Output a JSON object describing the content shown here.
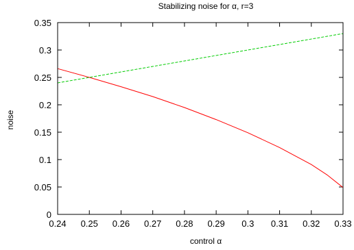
{
  "chart_data": {
    "type": "line",
    "title": "Stabilizing noise for α, r=3",
    "xlabel": "control α",
    "ylabel": "noise",
    "xlim": [
      0.24,
      0.33
    ],
    "ylim": [
      0,
      0.35
    ],
    "xticks": [
      0.24,
      0.25,
      0.26,
      0.27,
      0.28,
      0.29,
      0.3,
      0.31,
      0.32,
      0.33
    ],
    "xtick_labels": [
      "0.24",
      "0.25",
      "0.26",
      "0.27",
      "0.28",
      "0.29",
      "0.3",
      "0.31",
      "0.32",
      "0.33"
    ],
    "yticks": [
      0,
      0.05,
      0.1,
      0.15,
      0.2,
      0.25,
      0.3,
      0.35
    ],
    "ytick_labels": [
      "0",
      "0.05",
      "0.1",
      "0.15",
      "0.2",
      "0.25",
      "0.3",
      "0.35"
    ],
    "grid": false,
    "legend": "none",
    "series": [
      {
        "color": "#ff0000",
        "dash": "solid",
        "x": [
          0.24,
          0.25,
          0.26,
          0.27,
          0.28,
          0.29,
          0.3,
          0.31,
          0.32,
          0.325,
          0.33
        ],
        "y": [
          0.266,
          0.25,
          0.233,
          0.215,
          0.195,
          0.173,
          0.149,
          0.122,
          0.091,
          0.072,
          0.049
        ]
      },
      {
        "color": "#00cc00",
        "dash": "dashed",
        "x": [
          0.24,
          0.33
        ],
        "y": [
          0.24,
          0.33
        ]
      }
    ]
  }
}
